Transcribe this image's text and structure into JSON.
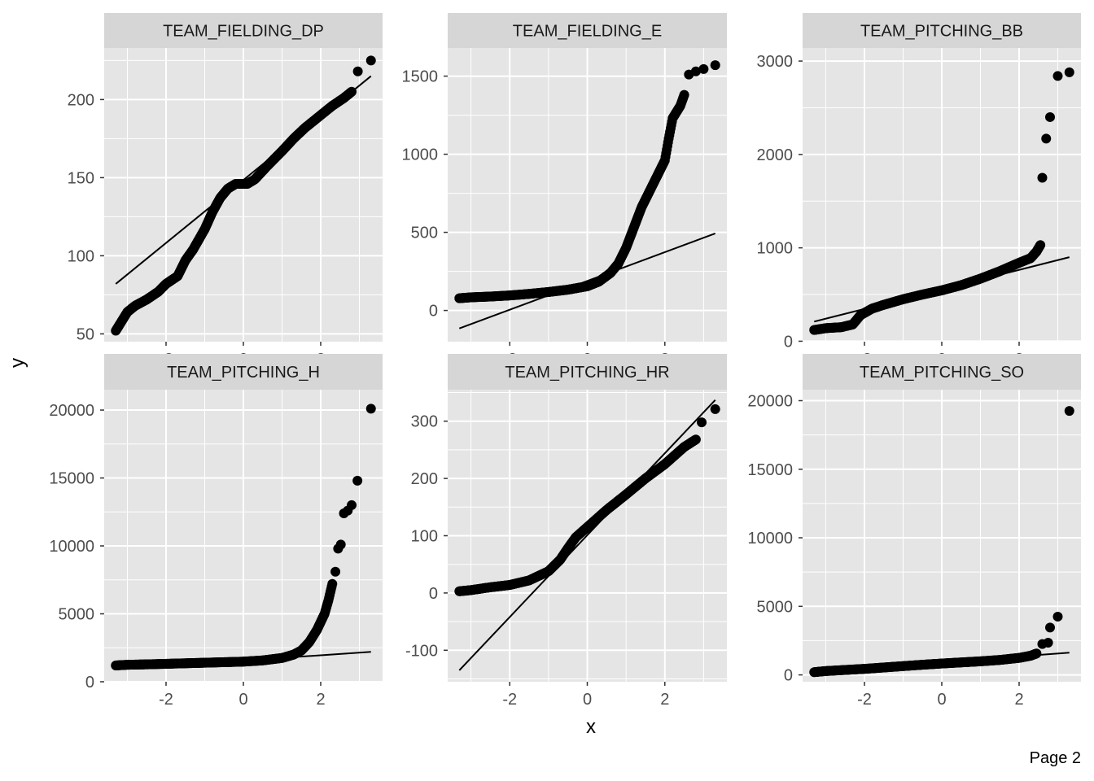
{
  "page": {
    "label": "Page 2"
  },
  "chart_data": {
    "type": "scatter",
    "kind": "qq-plot facet grid",
    "xlabel": "x",
    "ylabel": "y",
    "grid": true,
    "colors": {
      "panel": "#e5e5e5",
      "strip": "#d6d6d6",
      "grid": "#ffffff",
      "point": "#000000",
      "line": "#000000",
      "tick_text": "#4d4d4d"
    },
    "x_ticks": [
      -2,
      0,
      2
    ],
    "panels": [
      {
        "title": "TEAM_FIELDING_DP",
        "xlim": [
          -3.6,
          3.6
        ],
        "ylim": [
          45,
          233
        ],
        "y_ticks": [
          50,
          100,
          150,
          200
        ],
        "line": [
          [
            -3.3,
            82
          ],
          [
            3.3,
            215
          ]
        ],
        "curve": [
          [
            -3.3,
            52
          ],
          [
            -3.0,
            64
          ],
          [
            -2.8,
            68
          ],
          [
            -2.5,
            72
          ],
          [
            -2.2,
            77
          ],
          [
            -2.0,
            82
          ],
          [
            -1.7,
            87
          ],
          [
            -1.5,
            97
          ],
          [
            -1.3,
            104
          ],
          [
            -1.0,
            117
          ],
          [
            -0.8,
            128
          ],
          [
            -0.6,
            137
          ],
          [
            -0.4,
            143
          ],
          [
            -0.2,
            146
          ],
          [
            0.0,
            146
          ],
          [
            0.1,
            146
          ],
          [
            0.3,
            149
          ],
          [
            0.6,
            157
          ],
          [
            1.0,
            167
          ],
          [
            1.3,
            175
          ],
          [
            1.6,
            182
          ],
          [
            2.0,
            190
          ],
          [
            2.3,
            196
          ],
          [
            2.6,
            201
          ],
          [
            2.8,
            205
          ]
        ],
        "extremes": [
          [
            2.96,
            218
          ],
          [
            3.3,
            225
          ]
        ]
      },
      {
        "title": "TEAM_FIELDING_E",
        "xlim": [
          -3.6,
          3.6
        ],
        "ylim": [
          -200,
          1680
        ],
        "y_ticks": [
          0,
          500,
          1000,
          1500
        ],
        "line": [
          [
            -3.3,
            -115
          ],
          [
            3.3,
            493
          ]
        ],
        "curve": [
          [
            -3.3,
            78
          ],
          [
            -3.0,
            84
          ],
          [
            -2.5,
            89
          ],
          [
            -2.0,
            96
          ],
          [
            -1.5,
            106
          ],
          [
            -1.0,
            118
          ],
          [
            -0.5,
            133
          ],
          [
            0.0,
            155
          ],
          [
            0.3,
            185
          ],
          [
            0.6,
            240
          ],
          [
            0.8,
            300
          ],
          [
            1.0,
            400
          ],
          [
            1.2,
            530
          ],
          [
            1.4,
            660
          ],
          [
            1.6,
            760
          ],
          [
            1.8,
            860
          ],
          [
            2.0,
            960
          ],
          [
            2.1,
            1100
          ],
          [
            2.2,
            1230
          ],
          [
            2.4,
            1310
          ],
          [
            2.5,
            1380
          ]
        ],
        "extremes": [
          [
            2.62,
            1510
          ],
          [
            2.8,
            1530
          ],
          [
            3.0,
            1545
          ],
          [
            3.3,
            1570
          ]
        ]
      },
      {
        "title": "TEAM_PITCHING_BB",
        "xlim": [
          -3.6,
          3.6
        ],
        "ylim": [
          -5,
          3140
        ],
        "y_ticks": [
          0,
          1000,
          2000,
          3000
        ],
        "line": [
          [
            -3.3,
            210
          ],
          [
            3.3,
            900
          ]
        ],
        "curve": [
          [
            -3.3,
            120
          ],
          [
            -3.0,
            140
          ],
          [
            -2.6,
            150
          ],
          [
            -2.3,
            180
          ],
          [
            -2.1,
            280
          ],
          [
            -1.8,
            350
          ],
          [
            -1.5,
            390
          ],
          [
            -1.0,
            450
          ],
          [
            -0.5,
            500
          ],
          [
            0.0,
            545
          ],
          [
            0.5,
            600
          ],
          [
            1.0,
            670
          ],
          [
            1.5,
            750
          ],
          [
            2.0,
            840
          ],
          [
            2.3,
            890
          ],
          [
            2.45,
            960
          ],
          [
            2.55,
            1030
          ]
        ],
        "extremes": [
          [
            2.6,
            1750
          ],
          [
            2.7,
            2170
          ],
          [
            2.8,
            2400
          ],
          [
            3.0,
            2840
          ],
          [
            3.3,
            2880
          ]
        ]
      },
      {
        "title": "TEAM_PITCHING_H",
        "xlim": [
          -3.6,
          3.6
        ],
        "ylim": [
          0,
          21500
        ],
        "y_ticks": [
          0,
          5000,
          10000,
          15000,
          20000
        ],
        "line": [
          [
            -3.3,
            930
          ],
          [
            3.3,
            2200
          ]
        ],
        "curve": [
          [
            -3.3,
            1200
          ],
          [
            -3.0,
            1250
          ],
          [
            -2.5,
            1280
          ],
          [
            -2.0,
            1320
          ],
          [
            -1.5,
            1360
          ],
          [
            -1.0,
            1400
          ],
          [
            -0.5,
            1440
          ],
          [
            0.0,
            1480
          ],
          [
            0.5,
            1570
          ],
          [
            1.0,
            1750
          ],
          [
            1.3,
            2000
          ],
          [
            1.5,
            2300
          ],
          [
            1.7,
            2900
          ],
          [
            1.9,
            3800
          ],
          [
            2.1,
            5000
          ],
          [
            2.2,
            6000
          ],
          [
            2.3,
            7200
          ]
        ],
        "extremes": [
          [
            2.38,
            8100
          ],
          [
            2.45,
            9800
          ],
          [
            2.52,
            10100
          ],
          [
            2.6,
            12400
          ],
          [
            2.7,
            12600
          ],
          [
            2.8,
            13000
          ],
          [
            2.95,
            14800
          ],
          [
            3.3,
            20100
          ]
        ]
      },
      {
        "title": "TEAM_PITCHING_HR",
        "xlim": [
          -3.6,
          3.6
        ],
        "ylim": [
          -155,
          355
        ],
        "y_ticks": [
          -100,
          0,
          100,
          200,
          300
        ],
        "line": [
          [
            -3.3,
            -135
          ],
          [
            3.3,
            337
          ]
        ],
        "curve": [
          [
            -3.3,
            3
          ],
          [
            -3.0,
            5
          ],
          [
            -2.5,
            10
          ],
          [
            -2.0,
            14
          ],
          [
            -1.5,
            22
          ],
          [
            -1.0,
            38
          ],
          [
            -0.7,
            58
          ],
          [
            -0.5,
            78
          ],
          [
            -0.3,
            97
          ],
          [
            0.0,
            115
          ],
          [
            0.5,
            145
          ],
          [
            1.0,
            172
          ],
          [
            1.5,
            200
          ],
          [
            2.0,
            225
          ],
          [
            2.5,
            255
          ],
          [
            2.8,
            268
          ]
        ],
        "extremes": [
          [
            2.95,
            298
          ],
          [
            3.3,
            321
          ]
        ]
      },
      {
        "title": "TEAM_PITCHING_SO",
        "xlim": [
          -3.6,
          3.6
        ],
        "ylim": [
          -500,
          20800
        ],
        "y_ticks": [
          0,
          5000,
          10000,
          15000,
          20000
        ],
        "line": [
          [
            -3.3,
            230
          ],
          [
            3.3,
            1620
          ]
        ],
        "curve": [
          [
            -3.3,
            200
          ],
          [
            -3.0,
            280
          ],
          [
            -2.5,
            360
          ],
          [
            -2.0,
            440
          ],
          [
            -1.5,
            540
          ],
          [
            -1.0,
            640
          ],
          [
            -0.5,
            740
          ],
          [
            0.0,
            830
          ],
          [
            0.5,
            910
          ],
          [
            1.0,
            990
          ],
          [
            1.5,
            1090
          ],
          [
            2.0,
            1240
          ],
          [
            2.3,
            1400
          ],
          [
            2.45,
            1560
          ]
        ],
        "extremes": [
          [
            2.6,
            2250
          ],
          [
            2.75,
            2350
          ],
          [
            2.8,
            3450
          ],
          [
            3.0,
            4250
          ],
          [
            3.3,
            19250
          ]
        ]
      }
    ]
  }
}
